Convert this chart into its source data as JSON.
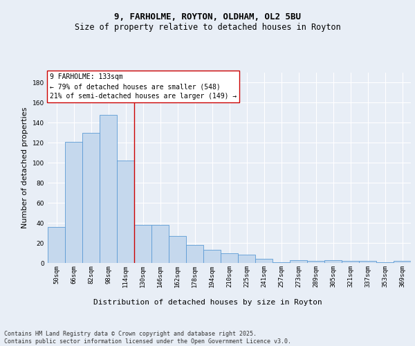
{
  "title_line1": "9, FARHOLME, ROYTON, OLDHAM, OL2 5BU",
  "title_line2": "Size of property relative to detached houses in Royton",
  "xlabel": "Distribution of detached houses by size in Royton",
  "ylabel": "Number of detached properties",
  "categories": [
    "50sqm",
    "66sqm",
    "82sqm",
    "98sqm",
    "114sqm",
    "130sqm",
    "146sqm",
    "162sqm",
    "178sqm",
    "194sqm",
    "210sqm",
    "225sqm",
    "241sqm",
    "257sqm",
    "273sqm",
    "289sqm",
    "305sqm",
    "321sqm",
    "337sqm",
    "353sqm",
    "369sqm"
  ],
  "values": [
    36,
    121,
    130,
    148,
    102,
    38,
    38,
    27,
    18,
    13,
    10,
    8,
    4,
    1,
    3,
    2,
    3,
    2,
    2,
    1,
    2
  ],
  "bar_color": "#c5d8ed",
  "bar_edge_color": "#5b9bd5",
  "vline_x": 4.5,
  "vline_color": "#cc0000",
  "annotation_text": "9 FARHOLME: 133sqm\n← 79% of detached houses are smaller (548)\n21% of semi-detached houses are larger (149) →",
  "annotation_box_color": "#ffffff",
  "annotation_box_edge": "#cc0000",
  "ylim": [
    0,
    190
  ],
  "yticks": [
    0,
    20,
    40,
    60,
    80,
    100,
    120,
    140,
    160,
    180
  ],
  "background_color": "#e8eef6",
  "plot_bg_color": "#e8eef6",
  "footer_text": "Contains HM Land Registry data © Crown copyright and database right 2025.\nContains public sector information licensed under the Open Government Licence v3.0.",
  "grid_color": "#ffffff",
  "title_fontsize": 9,
  "subtitle_fontsize": 8.5,
  "tick_fontsize": 6.5,
  "ylabel_fontsize": 8,
  "xlabel_fontsize": 8,
  "annotation_fontsize": 7,
  "footer_fontsize": 6
}
